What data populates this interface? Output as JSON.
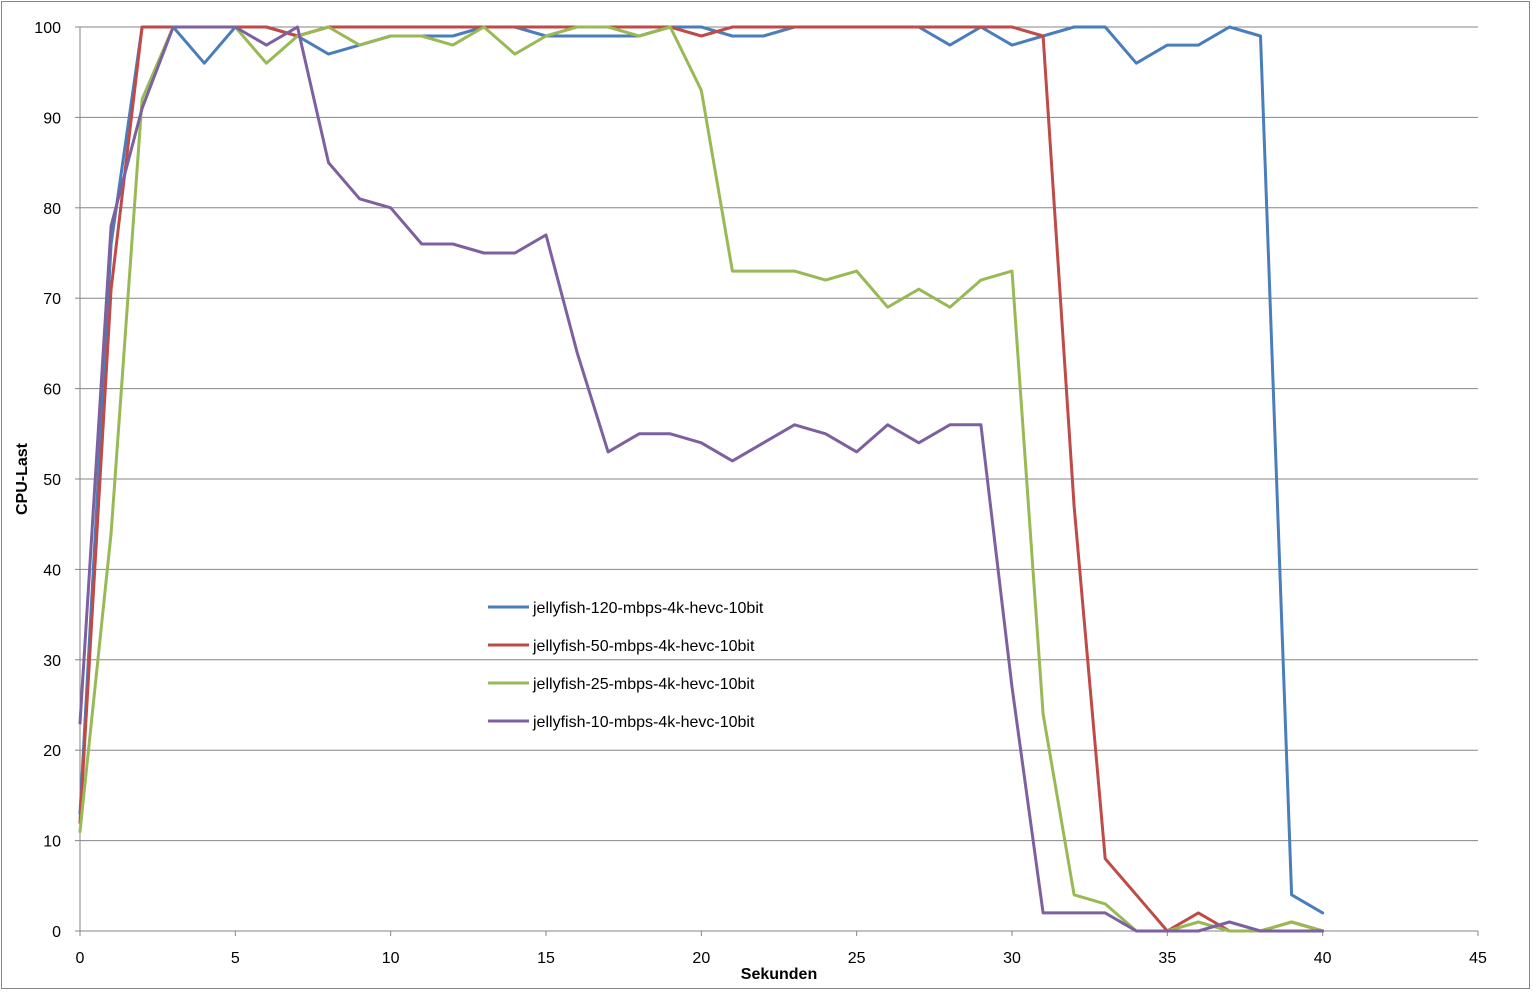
{
  "chart_data": {
    "type": "line",
    "title": "",
    "xlabel": "Sekunden",
    "ylabel": "CPU-Last",
    "xlim": [
      0,
      45
    ],
    "ylim": [
      0,
      100
    ],
    "xticks": [
      0,
      5,
      10,
      15,
      20,
      25,
      30,
      35,
      40,
      45
    ],
    "yticks": [
      0,
      10,
      20,
      30,
      40,
      50,
      60,
      70,
      80,
      90,
      100
    ],
    "grid": "horizontal",
    "legend_position": "center-left",
    "x": [
      0,
      1,
      2,
      3,
      4,
      5,
      6,
      7,
      8,
      9,
      10,
      11,
      12,
      13,
      14,
      15,
      16,
      17,
      18,
      19,
      20,
      21,
      22,
      23,
      24,
      25,
      26,
      27,
      28,
      29,
      30,
      31,
      32,
      33,
      34,
      35,
      36,
      37,
      38,
      39,
      40
    ],
    "series": [
      {
        "name": "jellyfish-120-mbps-4k-hevc-10bit",
        "color": "#4a7ebb",
        "values": [
          13,
          76,
          100,
          100,
          96,
          100,
          100,
          99,
          97,
          98,
          99,
          99,
          99,
          100,
          100,
          99,
          99,
          99,
          99,
          100,
          100,
          99,
          99,
          100,
          100,
          100,
          100,
          100,
          98,
          100,
          98,
          99,
          100,
          100,
          96,
          98,
          98,
          100,
          99,
          4,
          2
        ]
      },
      {
        "name": "jellyfish-50-mbps-4k-hevc-10bit",
        "color": "#be4b48",
        "values": [
          12,
          71,
          100,
          100,
          100,
          100,
          100,
          99,
          100,
          100,
          100,
          100,
          100,
          100,
          100,
          100,
          100,
          100,
          100,
          100,
          99,
          100,
          100,
          100,
          100,
          100,
          100,
          100,
          100,
          100,
          100,
          99,
          47,
          8,
          4,
          0,
          2,
          0,
          0,
          1,
          0
        ]
      },
      {
        "name": "jellyfish-25-mbps-4k-hevc-10bit",
        "color": "#98b954",
        "values": [
          11,
          44,
          92,
          100,
          100,
          100,
          96,
          99,
          100,
          98,
          99,
          99,
          98,
          100,
          97,
          99,
          100,
          100,
          99,
          100,
          93,
          73,
          73,
          73,
          72,
          73,
          69,
          71,
          69,
          72,
          73,
          24,
          4,
          3,
          0,
          0,
          1,
          0,
          0,
          1,
          0
        ]
      },
      {
        "name": "jellyfish-10-mbps-4k-hevc-10bit",
        "color": "#7d60a0",
        "values": [
          23,
          78,
          91,
          100,
          100,
          100,
          98,
          100,
          85,
          81,
          80,
          76,
          76,
          75,
          75,
          77,
          64,
          53,
          55,
          55,
          54,
          52,
          54,
          56,
          55,
          53,
          56,
          54,
          56,
          56,
          27,
          2,
          2,
          2,
          0,
          0,
          0,
          1,
          0,
          0,
          0
        ]
      }
    ]
  }
}
